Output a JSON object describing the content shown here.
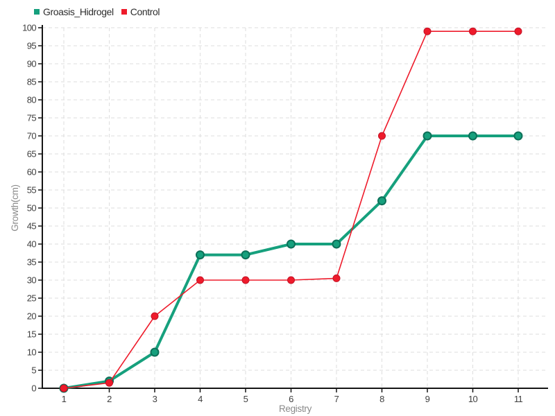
{
  "chart_data": {
    "type": "line",
    "xlabel": "Registry",
    "ylabel": "Growth(cm)",
    "x": [
      1,
      2,
      3,
      4,
      5,
      6,
      7,
      8,
      9,
      10,
      11
    ],
    "series": [
      {
        "name": "Groasis_Hidrogel",
        "color": "#16a07d",
        "dot_stroke": "#0d7059",
        "line_width": 4,
        "dot_radius": 5.5,
        "dot_stroke_width": 2,
        "values": [
          0,
          2,
          10,
          37,
          37,
          40,
          40,
          52,
          70,
          70,
          70
        ]
      },
      {
        "name": "Control",
        "color": "#ee1b2b",
        "dot_stroke": "#c41226",
        "line_width": 1.6,
        "dot_radius": 5,
        "dot_stroke_width": 1,
        "values": [
          0,
          1.5,
          20,
          30,
          30,
          30,
          30.5,
          70,
          99,
          99,
          99
        ]
      }
    ],
    "ylim": [
      0,
      100
    ],
    "ytick_step": 5,
    "grid": true,
    "legend_position": "top-left",
    "background": "#ffffff",
    "grid_color": "#dedede",
    "axis_color": "#141414",
    "tick_label_color": "#3f3f3f",
    "axis_title_color": "#8a8a8a",
    "legend_text_color": "#2e2e2e"
  }
}
